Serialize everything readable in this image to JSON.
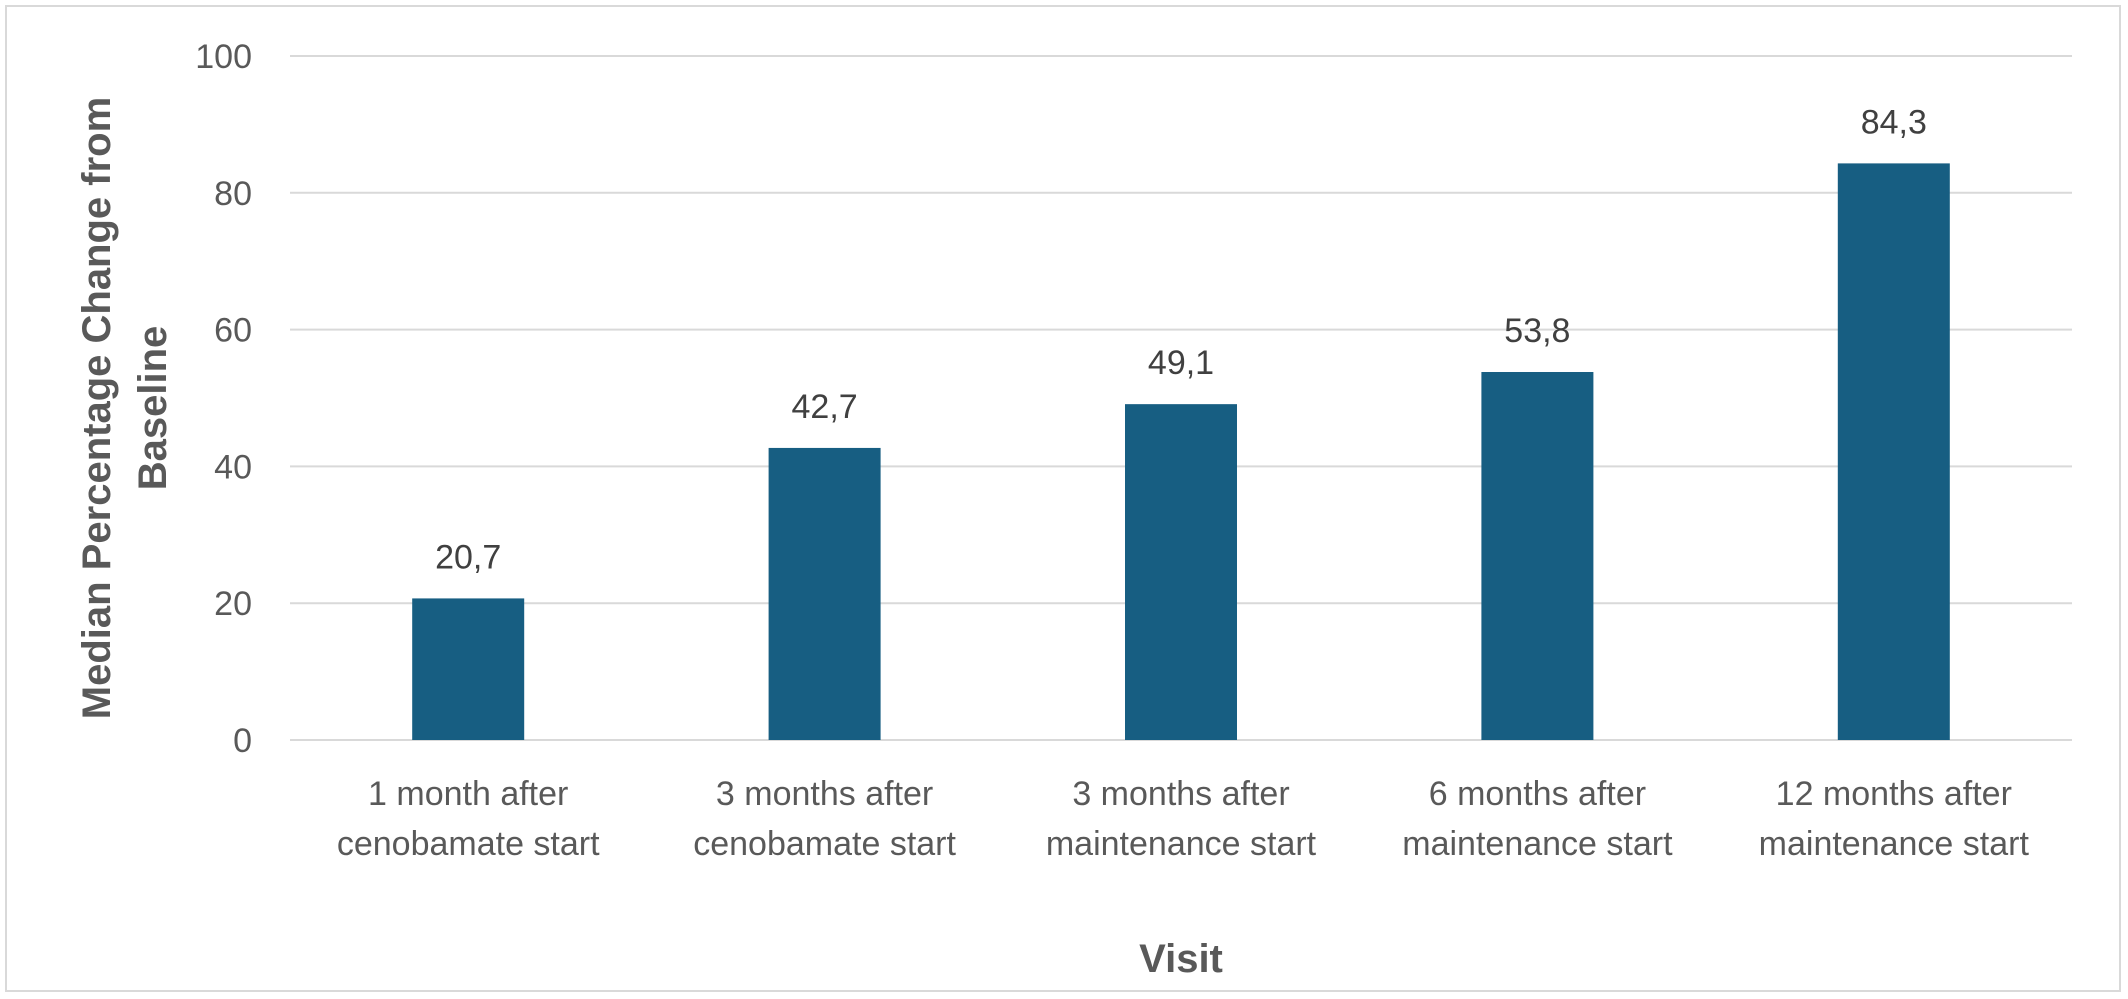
{
  "chart_data": {
    "type": "bar",
    "categories": [
      [
        "1 month after",
        "cenobamate start"
      ],
      [
        "3 months after",
        "cenobamate start"
      ],
      [
        "3 months after",
        "maintenance start"
      ],
      [
        "6 months after",
        "maintenance start"
      ],
      [
        "12 months after",
        "maintenance start"
      ]
    ],
    "values": [
      20.7,
      42.7,
      49.1,
      53.8,
      84.3
    ],
    "data_labels": [
      "20,7",
      "42,7",
      "49,1",
      "53,8",
      "84,3"
    ],
    "title": "",
    "xlabel": "Visit",
    "ylabel": [
      "Median Percentage Change from",
      "Baseline"
    ],
    "ylim": [
      0,
      100
    ],
    "yticks": [
      0,
      20,
      40,
      60,
      80,
      100
    ],
    "grid": true,
    "legend": "none",
    "bar_color": "#175e82",
    "grid_color": "#d9d9d9"
  }
}
